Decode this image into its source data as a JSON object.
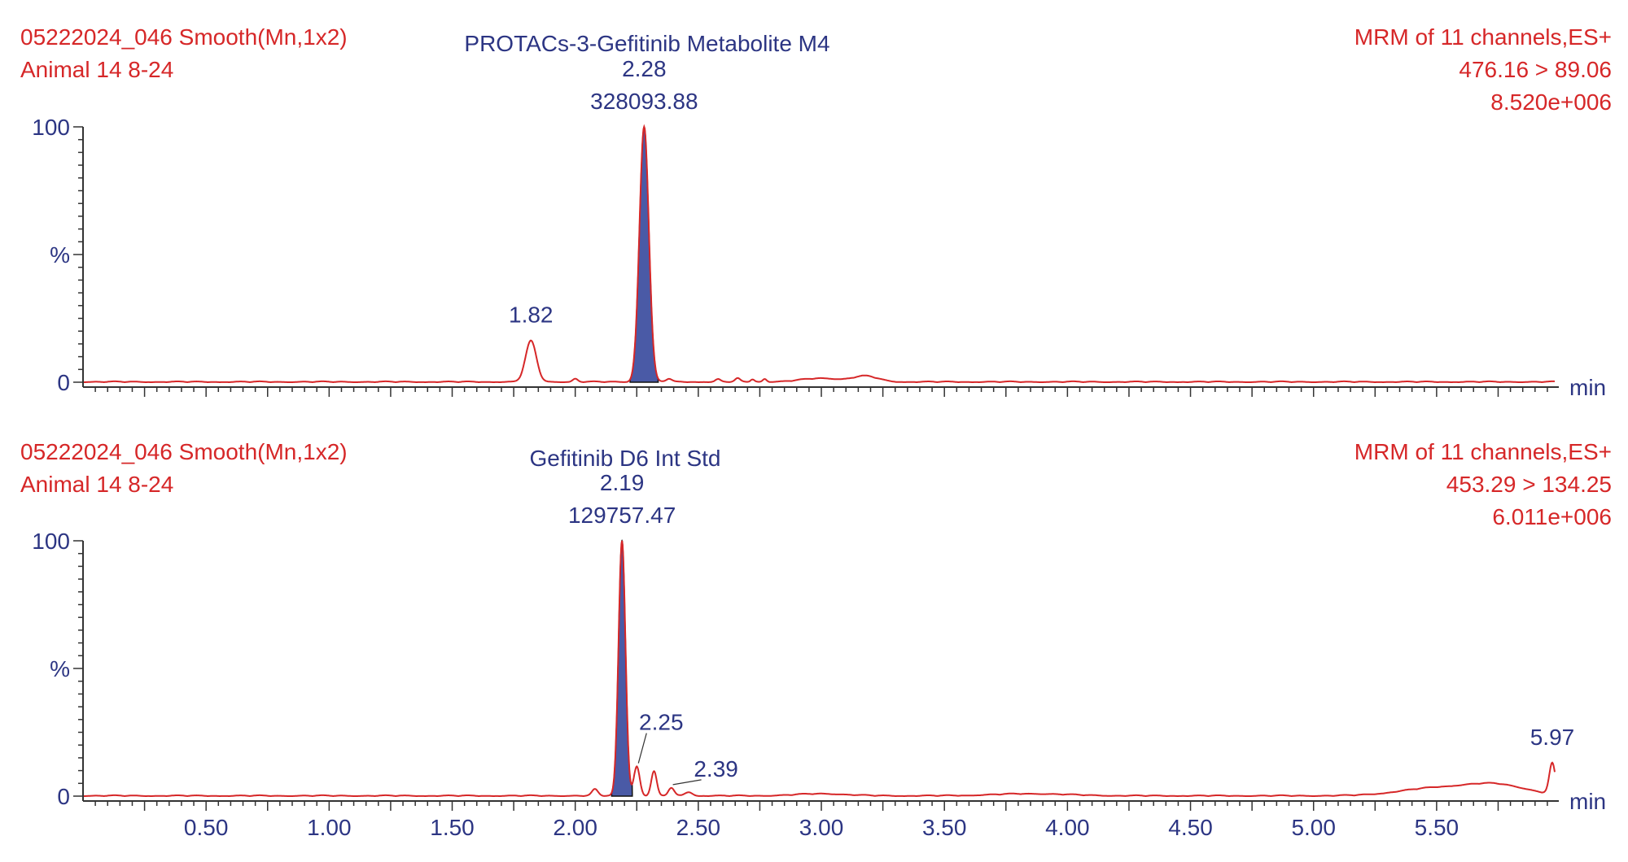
{
  "colors": {
    "trace": "#d62728",
    "peak_fill": "#4a5aa6",
    "axis": "#333333",
    "header_red": "#d62728",
    "header_blue": "#2c3583"
  },
  "chart_data": [
    {
      "type": "line",
      "header": {
        "file_info": "05222024_046 Smooth(Mn,1x2)",
        "sample": "Animal  14 8-24",
        "compound": "PROTACs-3-Gefitinib Metabolite M4",
        "mrm": "MRM of 11 channels,ES+",
        "transition": "476.16 > 89.06",
        "intensity": "8.520e+006"
      },
      "ylabel": "%",
      "xlabel": "min",
      "xlim": [
        0,
        5.98
      ],
      "ylim": [
        0,
        100
      ],
      "yticks": [
        {
          "label": "100",
          "value": 100
        },
        {
          "label": "%",
          "value": 50
        },
        {
          "label": "0",
          "value": 0
        }
      ],
      "xticks": [],
      "peaks": [
        {
          "rt": 1.82,
          "height": 16,
          "width": 0.022,
          "label": "1.82",
          "area": "",
          "filled": false
        },
        {
          "rt": 2.28,
          "height": 100,
          "width": 0.019,
          "label": "2.28",
          "area": "328093.88",
          "filled": true
        },
        {
          "rt": 2.0,
          "height": 1.2,
          "width": 0.01,
          "label": "",
          "area": "",
          "filled": false
        },
        {
          "rt": 2.38,
          "height": 1.2,
          "width": 0.012,
          "label": "",
          "area": "",
          "filled": false
        },
        {
          "rt": 2.58,
          "height": 1,
          "width": 0.01,
          "label": "",
          "area": "",
          "filled": false
        },
        {
          "rt": 2.66,
          "height": 1.3,
          "width": 0.01,
          "label": "",
          "area": "",
          "filled": false
        },
        {
          "rt": 2.72,
          "height": 1,
          "width": 0.008,
          "label": "",
          "area": "",
          "filled": false
        },
        {
          "rt": 2.77,
          "height": 1.2,
          "width": 0.008,
          "label": "",
          "area": "",
          "filled": false
        },
        {
          "rt": 3.0,
          "height": 1.4,
          "width": 0.08,
          "label": "",
          "area": "",
          "filled": false
        },
        {
          "rt": 3.18,
          "height": 2.2,
          "width": 0.05,
          "label": "",
          "area": "",
          "filled": false
        }
      ]
    },
    {
      "type": "line",
      "header": {
        "file_info": "05222024_046 Smooth(Mn,1x2)",
        "sample": "Animal  14 8-24",
        "compound": "Gefitinib D6 Int Std",
        "mrm": "MRM of 11 channels,ES+",
        "transition": "453.29 > 134.25",
        "intensity": "6.011e+006"
      },
      "ylabel": "%",
      "xlabel": "min",
      "xlim": [
        0,
        5.98
      ],
      "ylim": [
        0,
        100
      ],
      "yticks": [
        {
          "label": "100",
          "value": 100
        },
        {
          "label": "%",
          "value": 50
        },
        {
          "label": "0",
          "value": 0
        }
      ],
      "xticks": [
        "0.50",
        "1.00",
        "1.50",
        "2.00",
        "2.50",
        "3.00",
        "3.50",
        "4.00",
        "4.50",
        "5.00",
        "5.50"
      ],
      "peaks": [
        {
          "rt": 2.19,
          "height": 100,
          "width": 0.014,
          "label": "2.19",
          "area": "129757.47",
          "filled": true
        },
        {
          "rt": 2.08,
          "height": 2.5,
          "width": 0.012,
          "label": "",
          "area": "",
          "filled": false
        },
        {
          "rt": 2.25,
          "height": 11.5,
          "width": 0.012,
          "label": "2.25",
          "area": "",
          "filled": false
        },
        {
          "rt": 2.32,
          "height": 9.5,
          "width": 0.011,
          "label": "",
          "area": "",
          "filled": false
        },
        {
          "rt": 2.39,
          "height": 3,
          "width": 0.012,
          "label": "2.39",
          "area": "",
          "filled": false
        },
        {
          "rt": 2.46,
          "height": 1.5,
          "width": 0.015,
          "label": "",
          "area": "",
          "filled": false
        },
        {
          "rt": 3.0,
          "height": 0.8,
          "width": 0.1,
          "label": "",
          "area": "",
          "filled": false
        },
        {
          "rt": 3.85,
          "height": 0.8,
          "width": 0.15,
          "label": "",
          "area": "",
          "filled": false
        },
        {
          "rt": 5.5,
          "height": 3,
          "width": 0.15,
          "label": "",
          "area": "",
          "filled": false
        },
        {
          "rt": 5.75,
          "height": 4,
          "width": 0.12,
          "label": "",
          "area": "",
          "filled": false
        },
        {
          "rt": 5.97,
          "height": 12,
          "width": 0.012,
          "label": "5.97",
          "area": "",
          "filled": false
        }
      ]
    }
  ]
}
